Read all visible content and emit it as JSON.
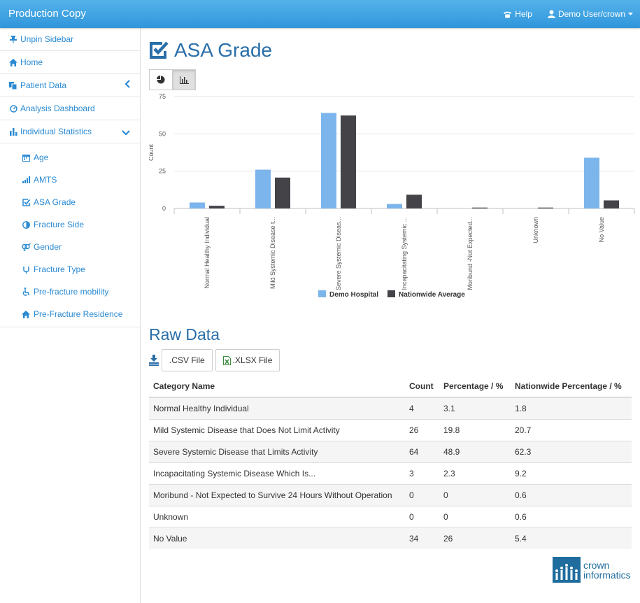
{
  "navbar": {
    "brand": "Production Copy",
    "help_label": "Help",
    "user_label": "Demo User/crown"
  },
  "sidebar": {
    "items": [
      {
        "label": "Unpin Sidebar",
        "icon": "pin-icon"
      },
      {
        "label": "Home",
        "icon": "home-icon"
      },
      {
        "label": "Patient Data",
        "icon": "copy-icon"
      },
      {
        "label": "Analysis Dashboard",
        "icon": "dashboard-icon"
      },
      {
        "label": "Individual Statistics",
        "icon": "bar-chart-icon"
      }
    ],
    "sub_items": [
      {
        "label": "Age",
        "icon": "calendar-icon"
      },
      {
        "label": "AMTS",
        "icon": "signal-icon"
      },
      {
        "label": "ASA Grade",
        "icon": "check-square-icon"
      },
      {
        "label": "Fracture Side",
        "icon": "half-circle-icon"
      },
      {
        "label": "Gender",
        "icon": "gender-icon"
      },
      {
        "label": "Fracture Type",
        "icon": "bone-icon"
      },
      {
        "label": "Pre-fracture mobility",
        "icon": "wheelchair-icon"
      },
      {
        "label": "Pre-Fracture Residence",
        "icon": "home-icon"
      }
    ]
  },
  "page": {
    "title": "ASA Grade",
    "raw_title": "Raw Data"
  },
  "export": {
    "csv_label": ".CSV File",
    "xlsx_label": ".XLSX File"
  },
  "chart_data": {
    "type": "bar",
    "categories": [
      "Normal Healthy Individual",
      "Mild Systemic Disease t...",
      "Severe Systemic Diseas...",
      "Incapacitating Systemic ...",
      "Moribund -Not Expected...",
      "Unknown",
      "No Value"
    ],
    "series": [
      {
        "name": "Demo Hospital",
        "values": [
          4,
          26,
          64,
          3,
          0,
          0,
          34
        ],
        "color": "#7cb5ec"
      },
      {
        "name": "Nationwide Average",
        "values": [
          1.8,
          20.7,
          62.3,
          9.2,
          0.6,
          0.6,
          5.4
        ],
        "color": "#434348"
      }
    ],
    "ylabel": "Count",
    "ylim": [
      0,
      75
    ],
    "yticks": [
      0,
      25,
      50,
      75
    ],
    "legend": "bottom-center"
  },
  "table": {
    "headers": [
      "Category Name",
      "Count",
      "Percentage / %",
      "Nationwide Percentage / %"
    ],
    "rows": [
      [
        "Normal Healthy Individual",
        "4",
        "3.1",
        "1.8"
      ],
      [
        "Mild Systemic Disease that Does Not Limit Activity",
        "26",
        "19.8",
        "20.7"
      ],
      [
        "Severe Systemic Disease that Limits Activity",
        "64",
        "48.9",
        "62.3"
      ],
      [
        "Incapacitating Systemic Disease Which Is...",
        "3",
        "2.3",
        "9.2"
      ],
      [
        "Moribund - Not Expected to Survive 24 Hours Without Operation",
        "0",
        "0",
        "0.6"
      ],
      [
        "Unknown",
        "0",
        "0",
        "0.6"
      ],
      [
        "No Value",
        "34",
        "26",
        "5.4"
      ]
    ]
  },
  "logo": {
    "line1": "crown",
    "line2": "informatics"
  }
}
